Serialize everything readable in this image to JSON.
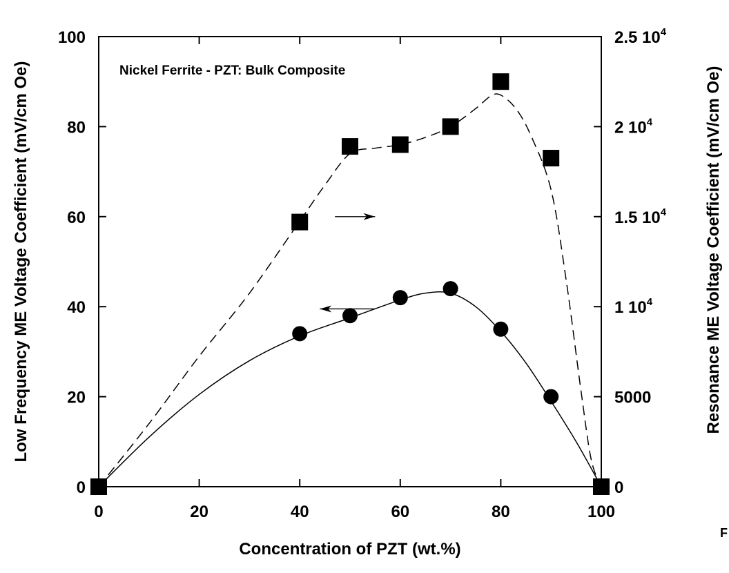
{
  "chart_data": {
    "type": "scatter",
    "title": "Nickel Ferrite - PZT:  Bulk Composite",
    "xlabel": "Concentration of PZT (wt.%)",
    "ylabel_left": "Low Frequency ME Voltage Coefficient (mV/cm Oe)",
    "ylabel_right": "Resonance ME Voltage Coefficient (mV/cm Oe)",
    "xlim": [
      0,
      100
    ],
    "ylim_left": [
      0,
      100
    ],
    "ylim_right": [
      0,
      25000
    ],
    "x_ticks": [
      0,
      20,
      40,
      60,
      80,
      100
    ],
    "y_left_ticks": [
      0,
      20,
      40,
      60,
      80,
      100
    ],
    "y_right_ticks": [
      {
        "value": 0,
        "base": "0",
        "sup": ""
      },
      {
        "value": 5000,
        "base": "5000",
        "sup": ""
      },
      {
        "value": 10000,
        "base": "1 10",
        "sup": "4"
      },
      {
        "value": 15000,
        "base": "1.5 10",
        "sup": "4"
      },
      {
        "value": 20000,
        "base": "2 10",
        "sup": "4"
      },
      {
        "value": 25000,
        "base": "2.5 10",
        "sup": "4"
      }
    ],
    "grid": false,
    "series": [
      {
        "axis": "left",
        "marker": "circle",
        "line_style": "solid",
        "x": [
          0,
          40,
          50,
          60,
          70,
          80,
          90,
          100
        ],
        "y": [
          0,
          34,
          38,
          42,
          44,
          35,
          20,
          0
        ],
        "fit_curve": {
          "x": [
            0,
            10,
            20,
            30,
            40,
            50,
            60,
            65,
            70,
            75,
            80,
            85,
            90,
            95,
            100
          ],
          "y": [
            0,
            11,
            20.5,
            28,
            33.5,
            37.5,
            41.5,
            43,
            43,
            40,
            34.5,
            27.5,
            19,
            10,
            0
          ]
        }
      },
      {
        "axis": "right",
        "marker": "square",
        "line_style": "dashed",
        "x": [
          0,
          40,
          50,
          60,
          70,
          80,
          90,
          100
        ],
        "y": [
          0,
          14700,
          18900,
          19000,
          20000,
          22500,
          18250,
          0
        ],
        "fit_curve": {
          "x": [
            0,
            10,
            20,
            30,
            40,
            45,
            50,
            55,
            60,
            65,
            70,
            75,
            78,
            80,
            83,
            86,
            90,
            93,
            96,
            98,
            100
          ],
          "y": [
            0,
            3500,
            7250,
            10750,
            14750,
            16750,
            18500,
            18800,
            19000,
            19400,
            20000,
            21000,
            21700,
            21750,
            21000,
            19500,
            16500,
            11500,
            5250,
            1500,
            0
          ]
        }
      }
    ],
    "annotations": [
      {
        "type": "arrow",
        "direction": "right",
        "points_to_axis": "right",
        "x": [
          47,
          55
        ],
        "y_left": 60
      },
      {
        "type": "arrow",
        "direction": "left",
        "points_to_axis": "left",
        "x": [
          55,
          44
        ],
        "y_left": 39.5
      }
    ]
  },
  "stray_text": "F"
}
